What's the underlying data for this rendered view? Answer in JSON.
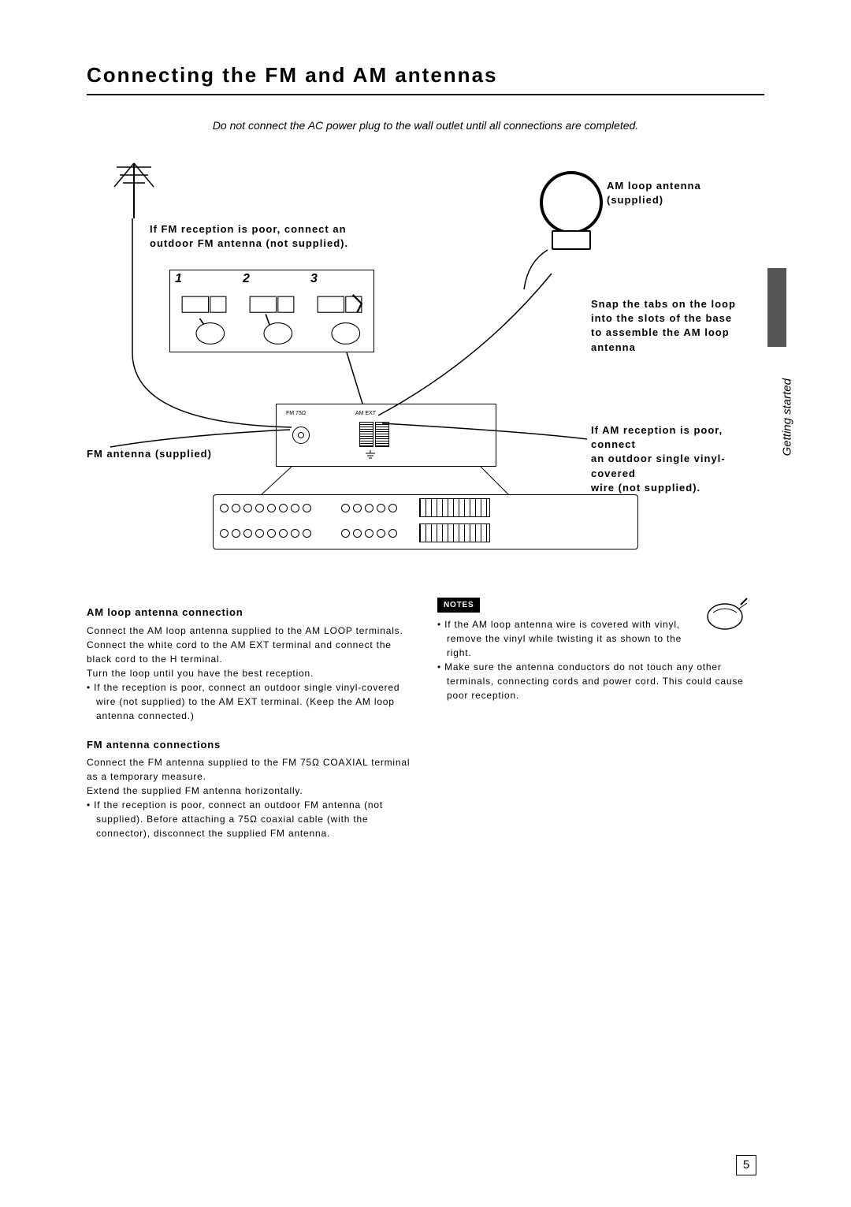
{
  "page": {
    "title": "Connecting the FM and AM antennas",
    "warning": "Do not connect the AC power plug to the wall outlet until all connections are completed.",
    "page_number": "5",
    "side_label": "Getting started"
  },
  "diagram": {
    "am_loop_label": "AM loop antenna\n(supplied)",
    "fm_poor_label": "If FM reception is poor, connect an\noutdoor FM antenna (not supplied).",
    "snap_label": "Snap the tabs on the loop\ninto the slots of the base\nto assemble the AM loop\nantenna",
    "am_poor_label": "If AM reception is poor, connect\nan outdoor single vinyl-covered\nwire (not supplied).",
    "fm_antenna_label": "FM antenna (supplied)",
    "steps": [
      "1",
      "2",
      "3"
    ],
    "fm_jack_text": "FM 75Ω",
    "am_ext_text": "AM EXT"
  },
  "body": {
    "am_head": "AM loop antenna connection",
    "am_p1": "Connect the AM loop antenna supplied to the AM LOOP terminals.",
    "am_p2": "Connect the white cord to the AM EXT terminal and connect the black cord to the H terminal.",
    "am_p3": "Turn the loop until you have the best reception.",
    "am_b1": "• If the reception is poor, connect an outdoor single vinyl-covered wire (not supplied) to the AM EXT terminal. (Keep the AM loop antenna connected.)",
    "fm_head": "FM antenna connections",
    "fm_p1": "Connect the FM antenna supplied to the FM 75Ω COAXIAL terminal as a temporary measure.",
    "fm_p2": "Extend the supplied FM antenna horizontally.",
    "fm_b1": "• If the reception is poor, connect an outdoor FM antenna (not supplied). Before attaching a 75Ω coaxial cable (with the connector), disconnect the supplied FM antenna.",
    "notes_label": "NOTES",
    "notes_b1": "• If the AM loop antenna wire is covered with vinyl, remove the vinyl while twisting it as shown to the right.",
    "notes_b2": "• Make sure the antenna conductors do not touch any other terminals, connecting cords and power cord. This could cause poor reception."
  },
  "colors": {
    "text": "#000000",
    "bg": "#ffffff",
    "tab": "#555555"
  }
}
